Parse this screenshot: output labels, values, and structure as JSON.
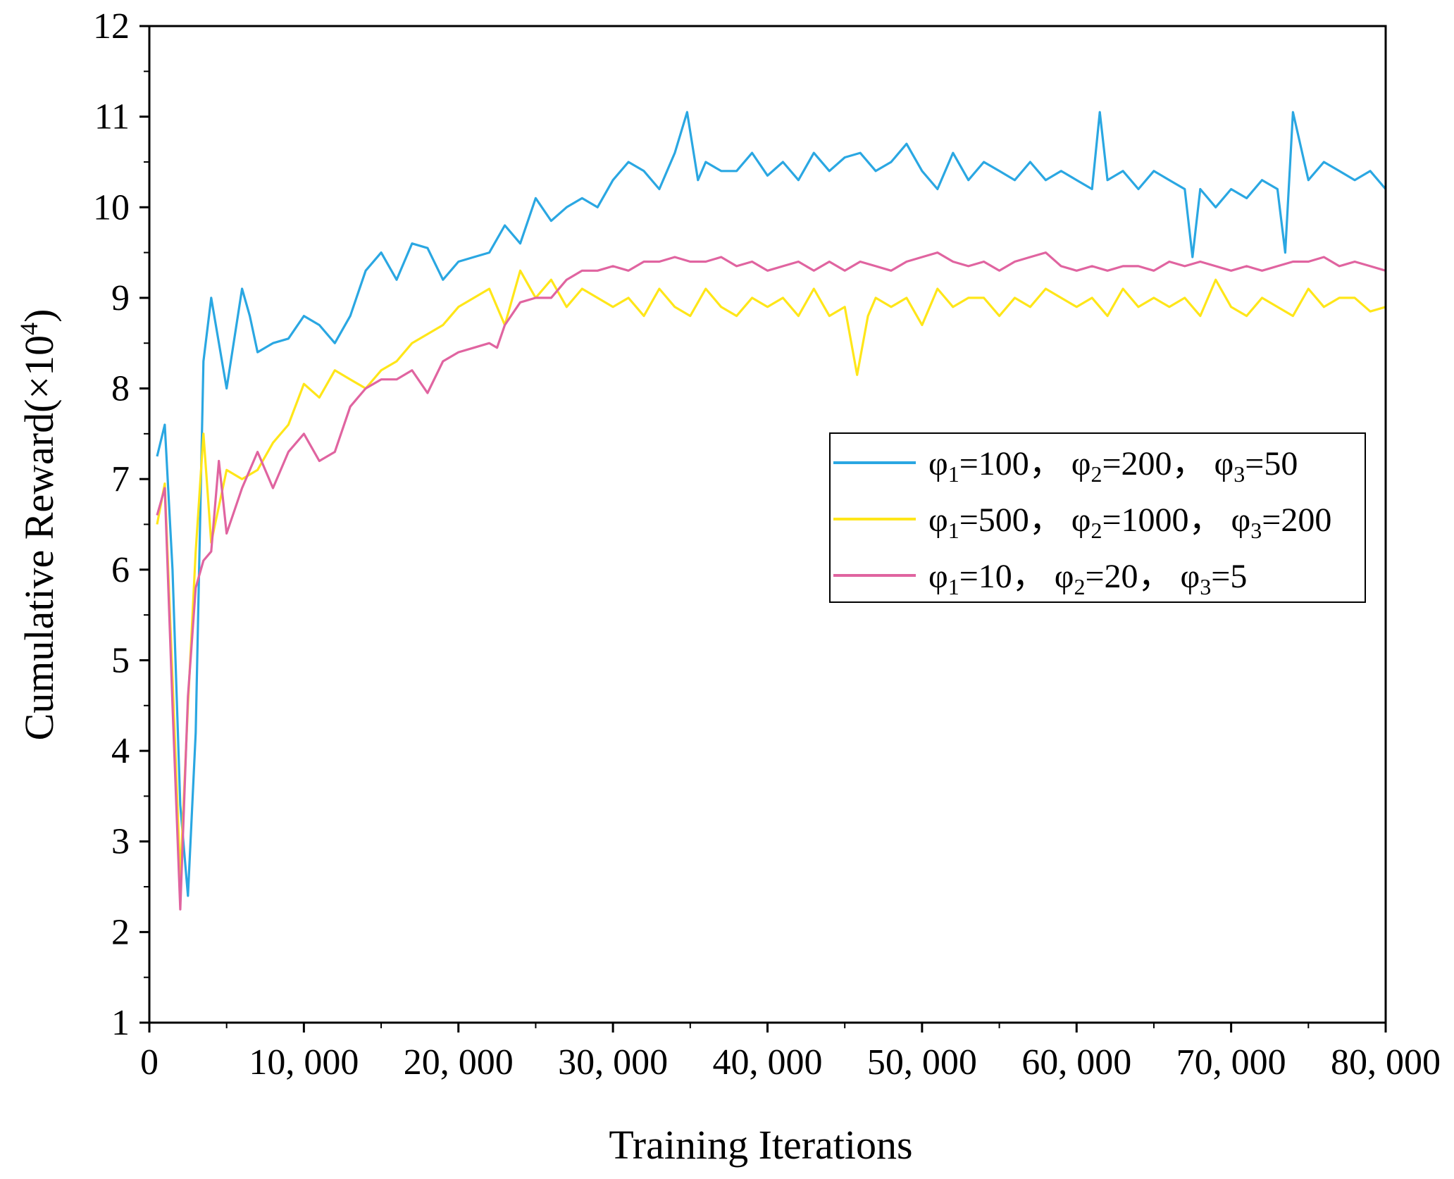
{
  "chart_data": {
    "type": "line",
    "title": "",
    "xlabel": "Training Iterations",
    "ylabel": "Cumulative Reward(×10",
    "ylabel_superscript": "4",
    "ylabel_close": ")",
    "xlim": [
      0,
      80000
    ],
    "ylim": [
      1,
      12
    ],
    "xticks": [
      0,
      10000,
      20000,
      30000,
      40000,
      50000,
      60000,
      70000,
      80000
    ],
    "xtick_labels": [
      "0",
      "10, 000",
      "20, 000",
      "30, 000",
      "40, 000",
      "50, 000",
      "60, 000",
      "70, 000",
      "80, 000"
    ],
    "yticks": [
      1,
      2,
      3,
      4,
      5,
      6,
      7,
      8,
      9,
      10,
      11,
      12
    ],
    "ytick_labels": [
      "1",
      "2",
      "3",
      "4",
      "5",
      "6",
      "7",
      "8",
      "9",
      "10",
      "11",
      "12"
    ],
    "grid": false,
    "legend_position": "right",
    "series": [
      {
        "name": "φ1=100，φ2=200，φ3=50",
        "legend_parts": [
          "φ",
          "1",
          "=100，  φ",
          "2",
          "=200，  φ",
          "3",
          "=50"
        ],
        "color": "#2aa7e2",
        "x": [
          500,
          1000,
          1500,
          2000,
          2500,
          3000,
          3500,
          4000,
          5000,
          6000,
          6500,
          7000,
          8000,
          9000,
          10000,
          11000,
          12000,
          13000,
          14000,
          15000,
          16000,
          17000,
          18000,
          19000,
          20000,
          21000,
          22000,
          23000,
          24000,
          25000,
          26000,
          27000,
          28000,
          29000,
          30000,
          31000,
          32000,
          33000,
          34000,
          34800,
          35500,
          36000,
          37000,
          38000,
          39000,
          40000,
          41000,
          42000,
          43000,
          44000,
          45000,
          46000,
          47000,
          48000,
          49000,
          50000,
          51000,
          52000,
          53000,
          54000,
          55000,
          56000,
          57000,
          58000,
          59000,
          60000,
          61000,
          61500,
          62000,
          63000,
          64000,
          65000,
          66000,
          67000,
          67500,
          68000,
          69000,
          70000,
          71000,
          72000,
          73000,
          73500,
          74000,
          75000,
          76000,
          77000,
          78000,
          79000,
          80000
        ],
        "y": [
          7.25,
          7.6,
          6.0,
          3.4,
          2.4,
          4.2,
          8.3,
          9.0,
          8.0,
          9.1,
          8.8,
          8.4,
          8.5,
          8.55,
          8.8,
          8.7,
          8.5,
          8.8,
          9.3,
          9.5,
          9.2,
          9.6,
          9.55,
          9.2,
          9.4,
          9.45,
          9.5,
          9.8,
          9.6,
          10.1,
          9.85,
          10.0,
          10.1,
          10.0,
          10.3,
          10.5,
          10.4,
          10.2,
          10.6,
          11.05,
          10.3,
          10.5,
          10.4,
          10.4,
          10.6,
          10.35,
          10.5,
          10.3,
          10.6,
          10.4,
          10.55,
          10.6,
          10.4,
          10.5,
          10.7,
          10.4,
          10.2,
          10.6,
          10.3,
          10.5,
          10.4,
          10.3,
          10.5,
          10.3,
          10.4,
          10.3,
          10.2,
          11.05,
          10.3,
          10.4,
          10.2,
          10.4,
          10.3,
          10.2,
          9.45,
          10.2,
          10.0,
          10.2,
          10.1,
          10.3,
          10.2,
          9.5,
          11.05,
          10.3,
          10.5,
          10.4,
          10.3,
          10.4,
          10.2
        ]
      },
      {
        "name": "φ1=500，φ2=1000，φ3=200",
        "legend_parts": [
          "φ",
          "1",
          "=500，  φ",
          "2",
          "=1000，  φ",
          "3",
          "=200"
        ],
        "color": "#ffe619",
        "x": [
          500,
          1000,
          1500,
          2000,
          2500,
          3000,
          3500,
          4000,
          5000,
          6000,
          7000,
          8000,
          9000,
          10000,
          11000,
          12000,
          13000,
          14000,
          15000,
          16000,
          17000,
          18000,
          19000,
          20000,
          21000,
          22000,
          23000,
          24000,
          25000,
          26000,
          27000,
          28000,
          29000,
          30000,
          31000,
          32000,
          33000,
          34000,
          35000,
          36000,
          37000,
          38000,
          39000,
          40000,
          41000,
          42000,
          43000,
          44000,
          45000,
          45800,
          46500,
          47000,
          48000,
          49000,
          50000,
          51000,
          52000,
          53000,
          54000,
          55000,
          56000,
          57000,
          58000,
          59000,
          60000,
          61000,
          62000,
          63000,
          64000,
          65000,
          66000,
          67000,
          68000,
          69000,
          70000,
          71000,
          72000,
          73000,
          74000,
          75000,
          76000,
          77000,
          78000,
          79000,
          80000
        ],
        "y": [
          6.5,
          6.95,
          4.8,
          2.6,
          4.5,
          6.2,
          7.5,
          6.3,
          7.1,
          7.0,
          7.1,
          7.4,
          7.6,
          8.05,
          7.9,
          8.2,
          8.1,
          8.0,
          8.2,
          8.3,
          8.5,
          8.6,
          8.7,
          8.9,
          9.0,
          9.1,
          8.7,
          9.3,
          9.0,
          9.2,
          8.9,
          9.1,
          9.0,
          8.9,
          9.0,
          8.8,
          9.1,
          8.9,
          8.8,
          9.1,
          8.9,
          8.8,
          9.0,
          8.9,
          9.0,
          8.8,
          9.1,
          8.8,
          8.9,
          8.15,
          8.8,
          9.0,
          8.9,
          9.0,
          8.7,
          9.1,
          8.9,
          9.0,
          9.0,
          8.8,
          9.0,
          8.9,
          9.1,
          9.0,
          8.9,
          9.0,
          8.8,
          9.1,
          8.9,
          9.0,
          8.9,
          9.0,
          8.8,
          9.2,
          8.9,
          8.8,
          9.0,
          8.9,
          8.8,
          9.1,
          8.9,
          9.0,
          9.0,
          8.85,
          8.9
        ]
      },
      {
        "name": "φ1=10，φ2=20，φ3=5",
        "legend_parts": [
          "φ",
          "1",
          "=10，  φ",
          "2",
          "=20，  φ",
          "3",
          "=5"
        ],
        "color": "#e064a0",
        "x": [
          500,
          1000,
          1500,
          2000,
          2500,
          3000,
          3500,
          4000,
          4500,
          5000,
          6000,
          7000,
          8000,
          9000,
          10000,
          11000,
          12000,
          13000,
          14000,
          15000,
          16000,
          17000,
          18000,
          19000,
          20000,
          21000,
          22000,
          22500,
          23000,
          24000,
          25000,
          26000,
          27000,
          28000,
          29000,
          30000,
          31000,
          32000,
          33000,
          34000,
          35000,
          36000,
          37000,
          38000,
          39000,
          40000,
          41000,
          42000,
          43000,
          44000,
          45000,
          46000,
          47000,
          48000,
          49000,
          50000,
          51000,
          52000,
          53000,
          54000,
          55000,
          56000,
          57000,
          58000,
          59000,
          60000,
          61000,
          62000,
          63000,
          64000,
          65000,
          66000,
          67000,
          68000,
          69000,
          70000,
          71000,
          72000,
          73000,
          74000,
          75000,
          76000,
          77000,
          78000,
          79000,
          80000
        ],
        "y": [
          6.6,
          6.9,
          4.5,
          2.25,
          4.6,
          5.8,
          6.1,
          6.2,
          7.2,
          6.4,
          6.9,
          7.3,
          6.9,
          7.3,
          7.5,
          7.2,
          7.3,
          7.8,
          8.0,
          8.1,
          8.1,
          8.2,
          7.95,
          8.3,
          8.4,
          8.45,
          8.5,
          8.45,
          8.7,
          8.95,
          9.0,
          9.0,
          9.2,
          9.3,
          9.3,
          9.35,
          9.3,
          9.4,
          9.4,
          9.45,
          9.4,
          9.4,
          9.45,
          9.35,
          9.4,
          9.3,
          9.35,
          9.4,
          9.3,
          9.4,
          9.3,
          9.4,
          9.35,
          9.3,
          9.4,
          9.45,
          9.5,
          9.4,
          9.35,
          9.4,
          9.3,
          9.4,
          9.45,
          9.5,
          9.35,
          9.3,
          9.35,
          9.3,
          9.35,
          9.35,
          9.3,
          9.4,
          9.35,
          9.4,
          9.35,
          9.3,
          9.35,
          9.3,
          9.35,
          9.4,
          9.4,
          9.45,
          9.35,
          9.4,
          9.35,
          9.3
        ]
      }
    ]
  }
}
